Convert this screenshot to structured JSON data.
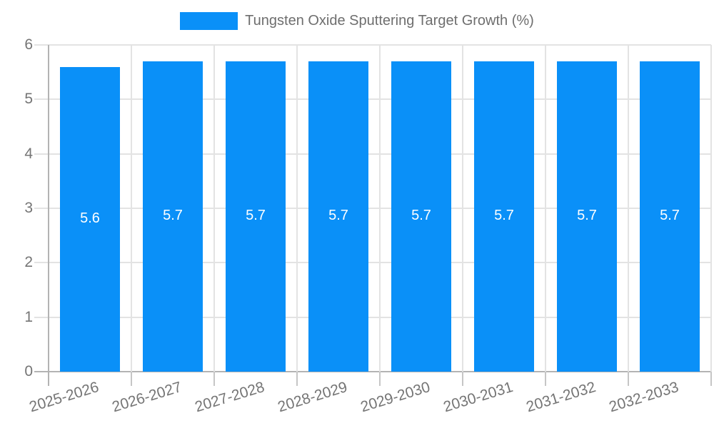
{
  "chart_data": {
    "type": "bar",
    "title": "Tungsten Oxide Sputtering Target Growth (%)",
    "categories": [
      "2025-2026",
      "2026-2027",
      "2027-2028",
      "2028-2029",
      "2029-2030",
      "2030-2031",
      "2031-2032",
      "2032-2033"
    ],
    "values": [
      5.6,
      5.7,
      5.7,
      5.7,
      5.7,
      5.7,
      5.7,
      5.7
    ],
    "value_labels": [
      "5.6",
      "5.7",
      "5.7",
      "5.7",
      "5.7",
      "5.7",
      "5.7",
      "5.7"
    ],
    "xlabel": "",
    "ylabel": "",
    "ylim": [
      0,
      6
    ],
    "yticks": [
      0,
      1,
      2,
      3,
      4,
      5,
      6
    ],
    "grid": true,
    "legend_position": "top",
    "colors": {
      "bar": "#0a90f8",
      "grid": "#e3e3e3",
      "axis": "#b3b3b3",
      "tick_text": "#757575",
      "bar_value_text": "#ffffff"
    }
  }
}
